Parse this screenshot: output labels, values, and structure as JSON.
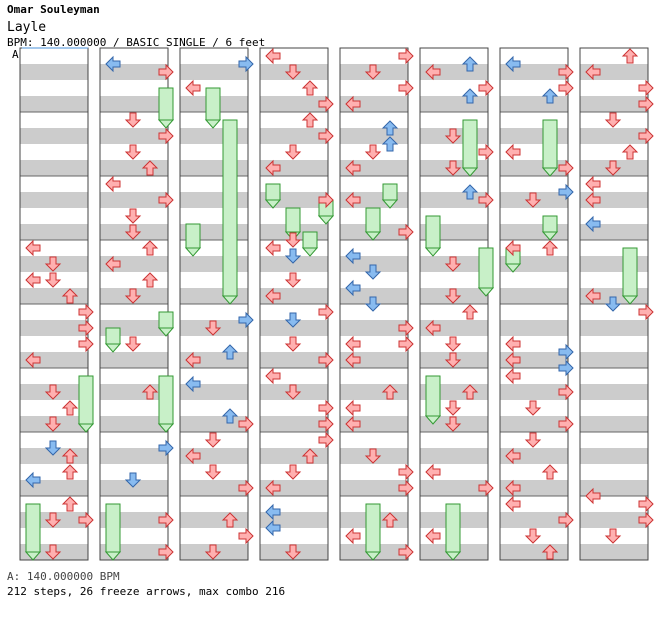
{
  "header": {
    "artist": "Omar Souleyman",
    "title": "Layle",
    "meta": "BPM: 140.000000 / BASIC SINGLE / 6 feet",
    "marker": "A"
  },
  "footer": {
    "bpm_line": "A: 140.000000 BPM",
    "stats_line": "212 steps, 26 freeze arrows, max combo 216"
  },
  "colors": {
    "quarter_arrow": "#ffb0b0",
    "eighth_arrow": "#88bbf0",
    "freeze_body": "#c8f0c8",
    "stripe": "#cccccc"
  },
  "chart_data": {
    "type": "table",
    "columns": 8,
    "measures_per_column": 8,
    "lanes": [
      "left",
      "down",
      "up",
      "right"
    ],
    "bpm": 140,
    "steps": 212,
    "freeze_arrows": 26,
    "max_combo": 216
  }
}
